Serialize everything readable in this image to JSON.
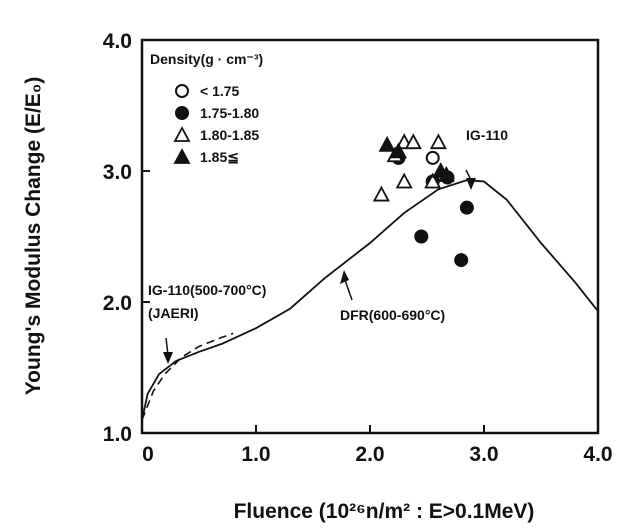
{
  "chart_data": {
    "type": "scatter",
    "xlabel": "Fluence (10²⁶n/m² : E>0.1MeV)",
    "ylabel": "Young's Modulus Change (E/E₀)",
    "xlim": [
      0,
      4.0
    ],
    "ylim": [
      1.0,
      4.0
    ],
    "x_ticks": [
      "0",
      "1.0",
      "2.0",
      "3.0",
      "4.0"
    ],
    "y_ticks": [
      "1.0",
      "2.0",
      "3.0",
      "4.0"
    ],
    "legend": {
      "title": "Density(g · cm⁻³)",
      "placement": "top-left",
      "entries": [
        {
          "marker": "open-circle",
          "label": "< 1.75"
        },
        {
          "marker": "filled-circle",
          "label": "1.75-1.80"
        },
        {
          "marker": "open-triangle",
          "label": "1.80-1.85"
        },
        {
          "marker": "filled-triangle",
          "label": "1.85≦"
        }
      ]
    },
    "series": [
      {
        "marker": "open-circle",
        "points": [
          [
            2.55,
            3.1
          ]
        ]
      },
      {
        "marker": "filled-circle",
        "points": [
          [
            2.25,
            3.1
          ],
          [
            2.55,
            2.92
          ],
          [
            2.85,
            2.72
          ],
          [
            2.45,
            2.5
          ],
          [
            2.8,
            2.32
          ],
          [
            2.68,
            2.95
          ]
        ]
      },
      {
        "marker": "open-triangle",
        "points": [
          [
            2.1,
            2.82
          ],
          [
            2.22,
            3.12
          ],
          [
            2.3,
            3.22
          ],
          [
            2.38,
            3.22
          ],
          [
            2.6,
            3.22
          ],
          [
            2.3,
            2.92
          ],
          [
            2.55,
            2.92
          ]
        ]
      },
      {
        "marker": "filled-triangle",
        "points": [
          [
            2.15,
            3.2
          ],
          [
            2.25,
            3.15
          ],
          [
            2.62,
            3.0
          ],
          [
            2.67,
            2.97
          ]
        ]
      }
    ],
    "curves": [
      {
        "style": "solid",
        "points": [
          [
            0,
            1.1
          ],
          [
            0.05,
            1.3
          ],
          [
            0.15,
            1.45
          ],
          [
            0.3,
            1.55
          ],
          [
            0.5,
            1.62
          ],
          [
            0.7,
            1.68
          ],
          [
            1.0,
            1.8
          ],
          [
            1.3,
            1.95
          ],
          [
            1.6,
            2.18
          ],
          [
            2.0,
            2.45
          ],
          [
            2.3,
            2.68
          ],
          [
            2.6,
            2.86
          ],
          [
            2.85,
            2.93
          ],
          [
            3.0,
            2.92
          ],
          [
            3.2,
            2.78
          ],
          [
            3.5,
            2.45
          ],
          [
            3.8,
            2.15
          ],
          [
            4.0,
            1.93
          ]
        ]
      },
      {
        "style": "dashed",
        "points": [
          [
            0,
            1.1
          ],
          [
            0.1,
            1.32
          ],
          [
            0.2,
            1.45
          ],
          [
            0.35,
            1.58
          ],
          [
            0.5,
            1.66
          ],
          [
            0.7,
            1.73
          ],
          [
            0.8,
            1.76
          ]
        ]
      }
    ],
    "annotations": [
      {
        "text": "IG-110",
        "x": 2.85,
        "y": 3.08
      },
      {
        "text": "IG-110(500-700°C)",
        "x": 0.05,
        "y": 2.08
      },
      {
        "text": "(JAERI)",
        "x": 0.05,
        "y": 1.88
      },
      {
        "text": "DFR(600-690°C)",
        "x": 1.9,
        "y": 1.9
      }
    ]
  }
}
